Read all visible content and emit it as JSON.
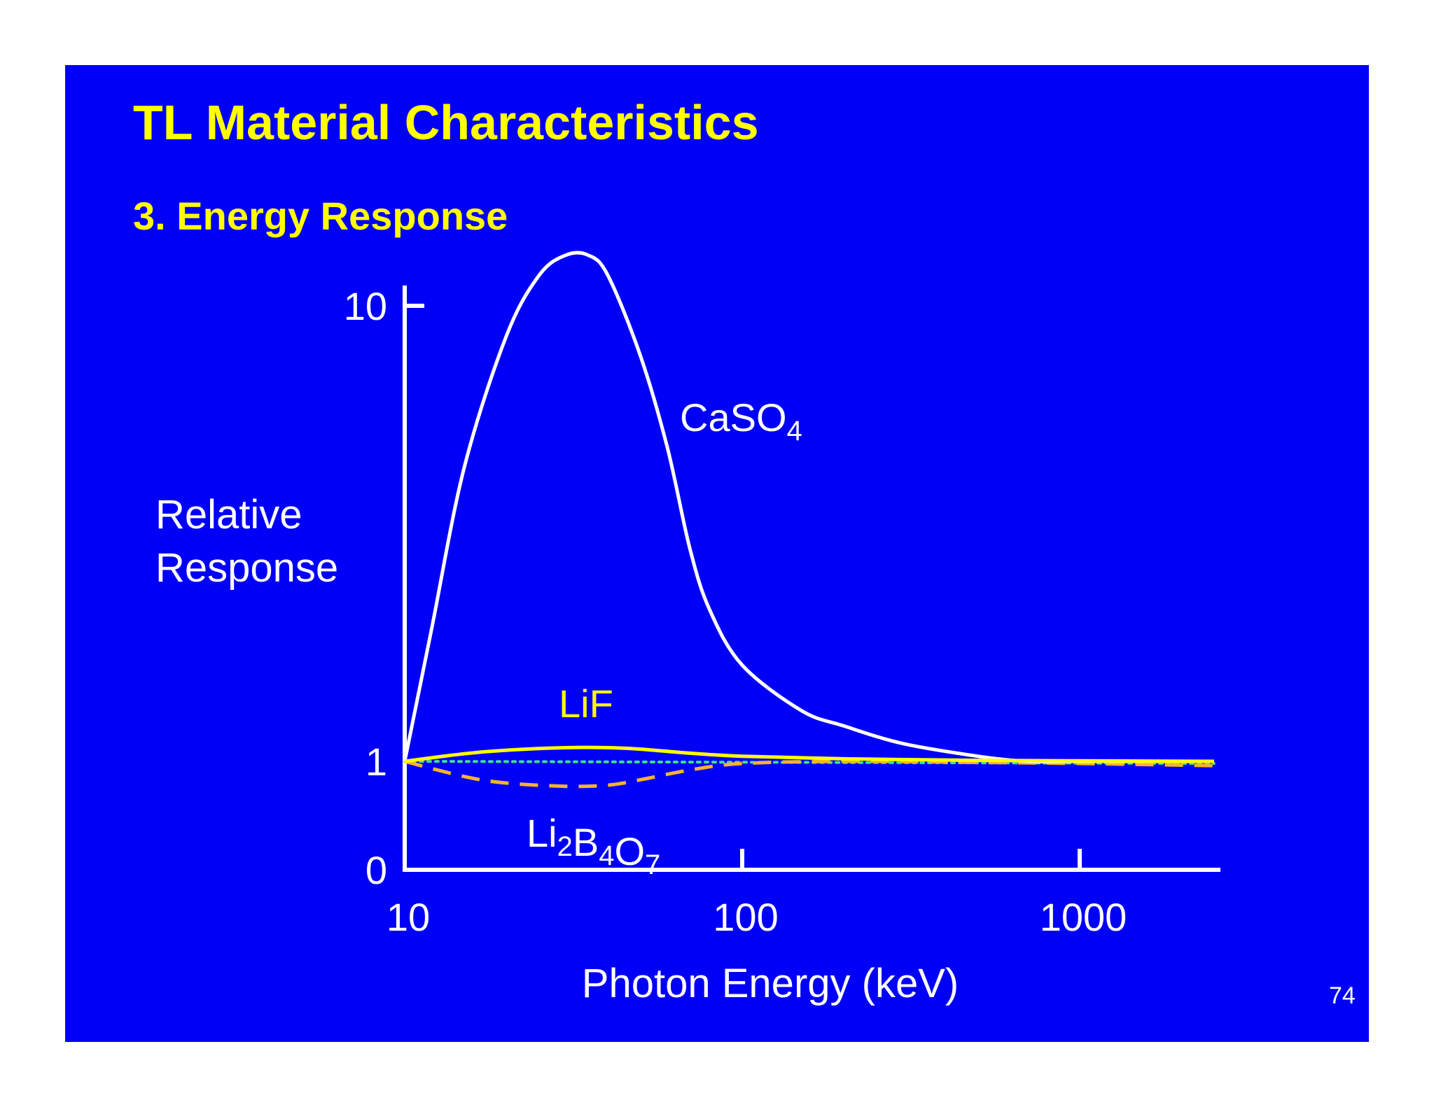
{
  "slide": {
    "title": "TL Material Characteristics",
    "subtitle": "3. Energy Response",
    "page_number": "74",
    "background_color": "#0000f6",
    "title_color": "#ffff00"
  },
  "chart_data": {
    "type": "line",
    "x_scale": "log",
    "xlabel": "Photon Energy  (keV)",
    "ylabel_lines": [
      "Relative",
      "Response"
    ],
    "xlim": [
      10,
      2500
    ],
    "x_ticks": [
      10,
      100,
      1000
    ],
    "x_tick_labels": [
      "10",
      "100",
      "1000"
    ],
    "y_ticks": [
      0,
      1,
      10
    ],
    "y_tick_labels": [
      "0",
      "1",
      "10"
    ],
    "grid": false,
    "legend": "none",
    "series": [
      {
        "key": "caso4",
        "label_main": "CaSO",
        "label_sub": "4",
        "color": "#ffffff",
        "style": "solid",
        "points": [
          [
            10,
            1.0
          ],
          [
            12,
            3.6
          ],
          [
            15,
            6.8
          ],
          [
            20,
            9.4
          ],
          [
            25,
            10.6
          ],
          [
            30,
            11.0
          ],
          [
            35,
            11.0
          ],
          [
            40,
            10.6
          ],
          [
            50,
            9.0
          ],
          [
            60,
            7.2
          ],
          [
            70,
            5.2
          ],
          [
            80,
            4.0
          ],
          [
            100,
            2.9
          ],
          [
            150,
            2.0
          ],
          [
            200,
            1.7
          ],
          [
            300,
            1.35
          ],
          [
            500,
            1.1
          ],
          [
            700,
            1.0
          ],
          [
            1000,
            1.0
          ],
          [
            2500,
            1.0
          ]
        ]
      },
      {
        "key": "lif",
        "label_main": "LiF",
        "color": "#ffff00",
        "style": "solid",
        "points": [
          [
            10,
            1.0
          ],
          [
            15,
            1.15
          ],
          [
            20,
            1.22
          ],
          [
            30,
            1.27
          ],
          [
            40,
            1.27
          ],
          [
            50,
            1.24
          ],
          [
            70,
            1.16
          ],
          [
            100,
            1.1
          ],
          [
            200,
            1.05
          ],
          [
            500,
            1.02
          ],
          [
            1000,
            1.01
          ],
          [
            2500,
            1.0
          ]
        ]
      },
      {
        "key": "li2b4o7",
        "label_parts": [
          [
            "Li",
            "2"
          ],
          [
            "B",
            "4"
          ],
          [
            "O",
            "7"
          ]
        ],
        "color": "#f5b32a",
        "style": "dashed",
        "points": [
          [
            10,
            1.0
          ],
          [
            15,
            0.86
          ],
          [
            20,
            0.8
          ],
          [
            30,
            0.77
          ],
          [
            40,
            0.78
          ],
          [
            50,
            0.83
          ],
          [
            70,
            0.92
          ],
          [
            100,
            0.98
          ],
          [
            200,
            1.0
          ],
          [
            500,
            0.99
          ],
          [
            1000,
            0.98
          ],
          [
            2500,
            0.96
          ]
        ]
      },
      {
        "key": "reference",
        "color": "#3fe08a",
        "style": "dotted",
        "points": [
          [
            10,
            1.0
          ],
          [
            2500,
            0.98
          ]
        ]
      }
    ]
  }
}
